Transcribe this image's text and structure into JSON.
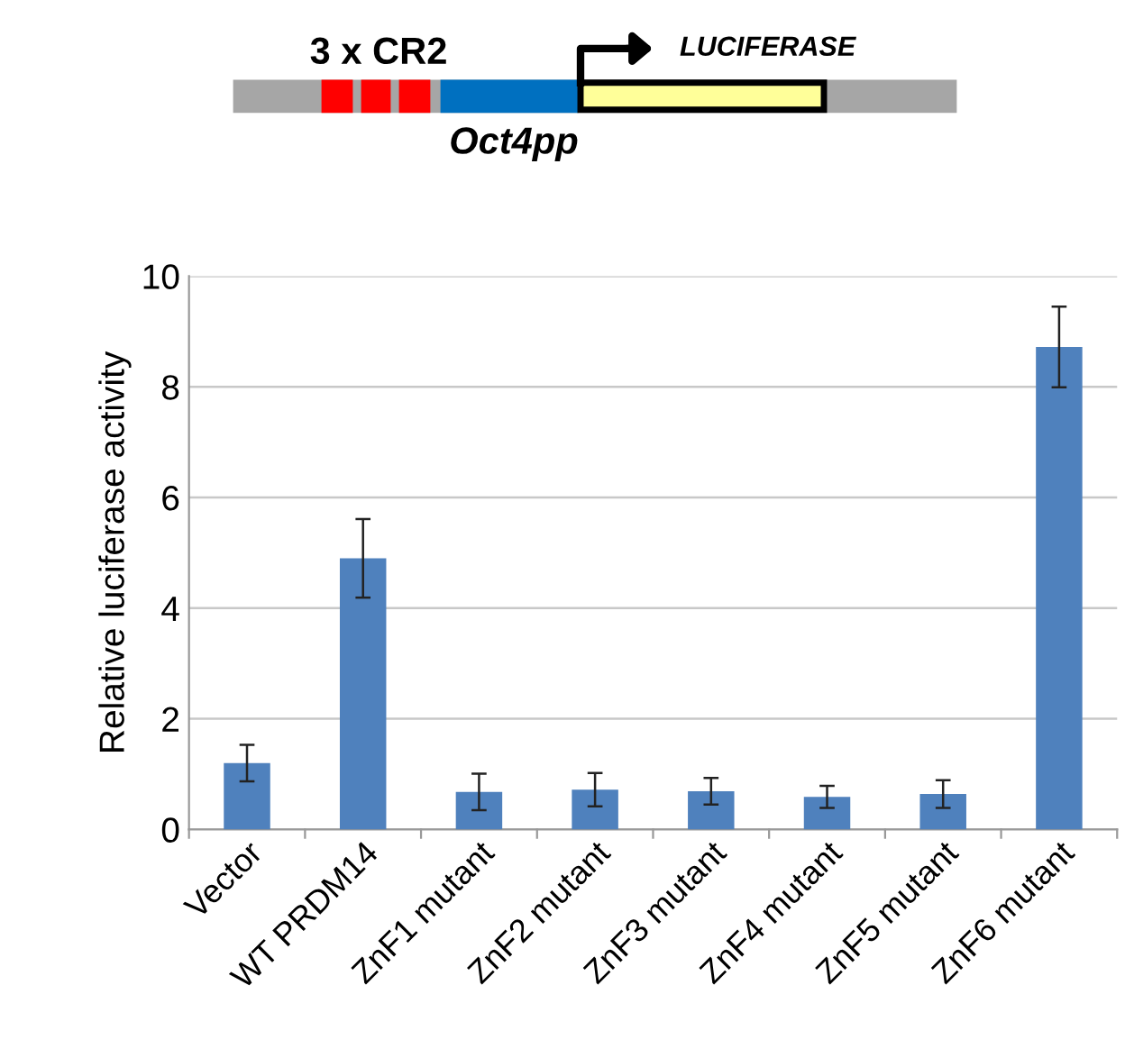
{
  "chart_data": {
    "type": "bar",
    "categories": [
      "Vector",
      "WT PRDM14",
      "ZnF1 mutant",
      "ZnF2 mutant",
      "ZnF3 mutant",
      "ZnF4 mutant",
      "ZnF5 mutant",
      "ZnF6 mutant"
    ],
    "values": [
      1.2,
      4.9,
      0.68,
      0.72,
      0.69,
      0.59,
      0.64,
      8.72
    ],
    "errors": [
      0.33,
      0.71,
      0.33,
      0.3,
      0.24,
      0.2,
      0.25,
      0.73
    ],
    "color": "#4f81bd",
    "ylabel": "Relative luciferase activity",
    "ylim": [
      0,
      10
    ],
    "yticks": [
      0,
      2,
      4,
      6,
      8,
      10
    ],
    "grid": "y",
    "legend": false,
    "annotations": [
      "3 x CR2",
      "LUCIFERASE",
      "Oct4pp"
    ]
  }
}
